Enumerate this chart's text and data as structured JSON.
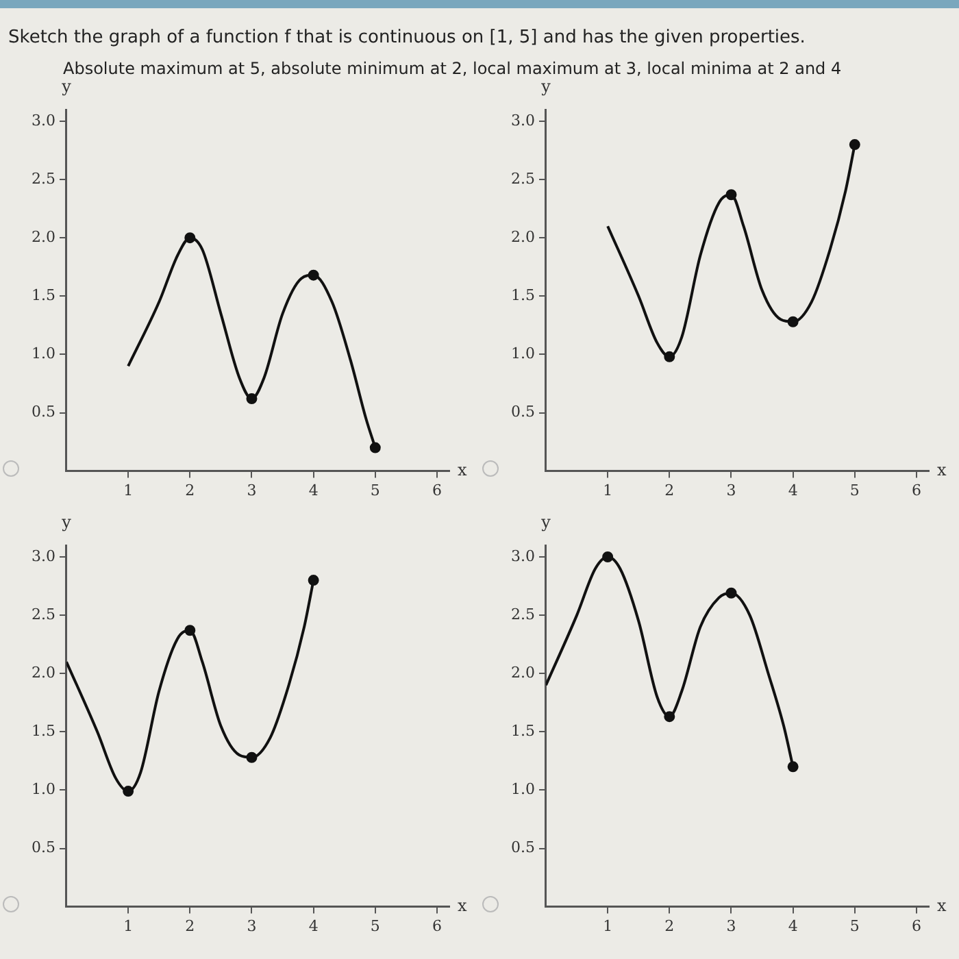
{
  "chart_data": [
    {
      "type": "line",
      "title": "Sketch the graph of a function f that is continuous on [1, 5] and has the given properties.",
      "subtitle": "Absolute maximum at 5, absolute minimum at 2, local maximum at 3, local minima at 2 and 4",
      "xlabel": "x",
      "ylabel": "y",
      "xlim": [
        0,
        6.2
      ],
      "ylim": [
        0,
        3.1
      ],
      "xticks": [
        1,
        2,
        3,
        4,
        5,
        6
      ],
      "yticks": [
        {
          "value": 0.5,
          "label": "0.5"
        },
        {
          "value": 1,
          "label": "1.0"
        },
        {
          "value": 1.5,
          "label": "1.5"
        },
        {
          "value": 2,
          "label": "2.0"
        },
        {
          "value": 2.5,
          "label": "2.5"
        },
        {
          "value": 3,
          "label": "3.0"
        }
      ],
      "grid": false,
      "legend": false,
      "series": [
        {
          "type": "line",
          "color": "#111111",
          "marker": "none",
          "line_style": "solid",
          "x": [
            1,
            1.5,
            1.8,
            2,
            2.2,
            2.5,
            2.8,
            3,
            3.2,
            3.5,
            3.8,
            4,
            4.3,
            4.6,
            4.85,
            5
          ],
          "values": [
            0.9,
            1.45,
            1.85,
            2.0,
            1.9,
            1.35,
            0.8,
            0.62,
            0.8,
            1.35,
            1.65,
            1.68,
            1.45,
            0.95,
            0.45,
            0.2
          ]
        },
        {
          "type": "scatter",
          "color": "#111111",
          "marker": "circle",
          "x": [
            2,
            3,
            4,
            5
          ],
          "values": [
            2.0,
            0.62,
            1.68,
            0.2
          ]
        }
      ]
    },
    {
      "type": "line",
      "xlabel": "x",
      "ylabel": "y",
      "xlim": [
        0,
        6.2
      ],
      "ylim": [
        0,
        3.1
      ],
      "xticks": [
        1,
        2,
        3,
        4,
        5,
        6
      ],
      "yticks": [
        {
          "value": 0.5,
          "label": "0.5"
        },
        {
          "value": 1,
          "label": "1.0"
        },
        {
          "value": 1.5,
          "label": "1.5"
        },
        {
          "value": 2,
          "label": "2.0"
        },
        {
          "value": 2.5,
          "label": "2.5"
        },
        {
          "value": 3,
          "label": "3.0"
        }
      ],
      "grid": false,
      "legend": false,
      "series": [
        {
          "type": "line",
          "color": "#111111",
          "marker": "none",
          "line_style": "solid",
          "x": [
            1,
            1.5,
            1.8,
            2,
            2.2,
            2.5,
            2.8,
            3,
            3.2,
            3.5,
            3.8,
            4,
            4.3,
            4.6,
            4.85,
            5
          ],
          "values": [
            2.1,
            1.5,
            1.1,
            0.98,
            1.15,
            1.85,
            2.3,
            2.37,
            2.1,
            1.55,
            1.3,
            1.28,
            1.45,
            1.9,
            2.4,
            2.8
          ]
        },
        {
          "type": "scatter",
          "color": "#111111",
          "marker": "circle",
          "x": [
            2,
            3,
            4,
            5
          ],
          "values": [
            0.98,
            2.37,
            1.28,
            2.8
          ]
        }
      ]
    },
    {
      "type": "line",
      "xlabel": "x",
      "ylabel": "y",
      "xlim": [
        0,
        6.2
      ],
      "ylim": [
        0,
        3.1
      ],
      "xticks": [
        1,
        2,
        3,
        4,
        5,
        6
      ],
      "yticks": [
        {
          "value": 0.5,
          "label": "0.5"
        },
        {
          "value": 1,
          "label": "1.0"
        },
        {
          "value": 1.5,
          "label": "1.5"
        },
        {
          "value": 2,
          "label": "2.0"
        },
        {
          "value": 2.5,
          "label": "2.5"
        },
        {
          "value": 3,
          "label": "3.0"
        }
      ],
      "grid": false,
      "legend": false,
      "series": [
        {
          "type": "line",
          "color": "#111111",
          "marker": "none",
          "line_style": "solid",
          "x": [
            0,
            0.5,
            0.8,
            1,
            1.2,
            1.5,
            1.8,
            2,
            2.2,
            2.5,
            2.8,
            3,
            3.3,
            3.6,
            3.85,
            4
          ],
          "values": [
            2.1,
            1.5,
            1.1,
            0.99,
            1.15,
            1.85,
            2.3,
            2.37,
            2.1,
            1.55,
            1.3,
            1.28,
            1.45,
            1.9,
            2.4,
            2.8
          ]
        },
        {
          "type": "scatter",
          "color": "#111111",
          "marker": "circle",
          "x": [
            1,
            2,
            3,
            4
          ],
          "values": [
            0.99,
            2.37,
            1.28,
            2.8
          ]
        }
      ]
    },
    {
      "type": "line",
      "xlabel": "x",
      "ylabel": "y",
      "xlim": [
        0,
        6.2
      ],
      "ylim": [
        0,
        3.1
      ],
      "xticks": [
        1,
        2,
        3,
        4,
        5,
        6
      ],
      "yticks": [
        {
          "value": 0.5,
          "label": "0.5"
        },
        {
          "value": 1,
          "label": "1.0"
        },
        {
          "value": 1.5,
          "label": "1.5"
        },
        {
          "value": 2,
          "label": "2.0"
        },
        {
          "value": 2.5,
          "label": "2.5"
        },
        {
          "value": 3,
          "label": "3.0"
        }
      ],
      "grid": false,
      "legend": false,
      "series": [
        {
          "type": "line",
          "color": "#111111",
          "marker": "none",
          "line_style": "solid",
          "x": [
            0,
            0.5,
            0.8,
            1,
            1.2,
            1.5,
            1.8,
            2,
            2.2,
            2.5,
            2.8,
            3,
            3.3,
            3.6,
            3.85,
            4
          ],
          "values": [
            1.9,
            2.5,
            2.9,
            3.0,
            2.9,
            2.45,
            1.8,
            1.63,
            1.85,
            2.4,
            2.65,
            2.69,
            2.5,
            2.0,
            1.55,
            1.2
          ]
        },
        {
          "type": "scatter",
          "color": "#111111",
          "marker": "circle",
          "x": [
            1,
            2,
            3,
            4
          ],
          "values": [
            3.0,
            1.63,
            2.69,
            1.2
          ]
        }
      ]
    }
  ]
}
